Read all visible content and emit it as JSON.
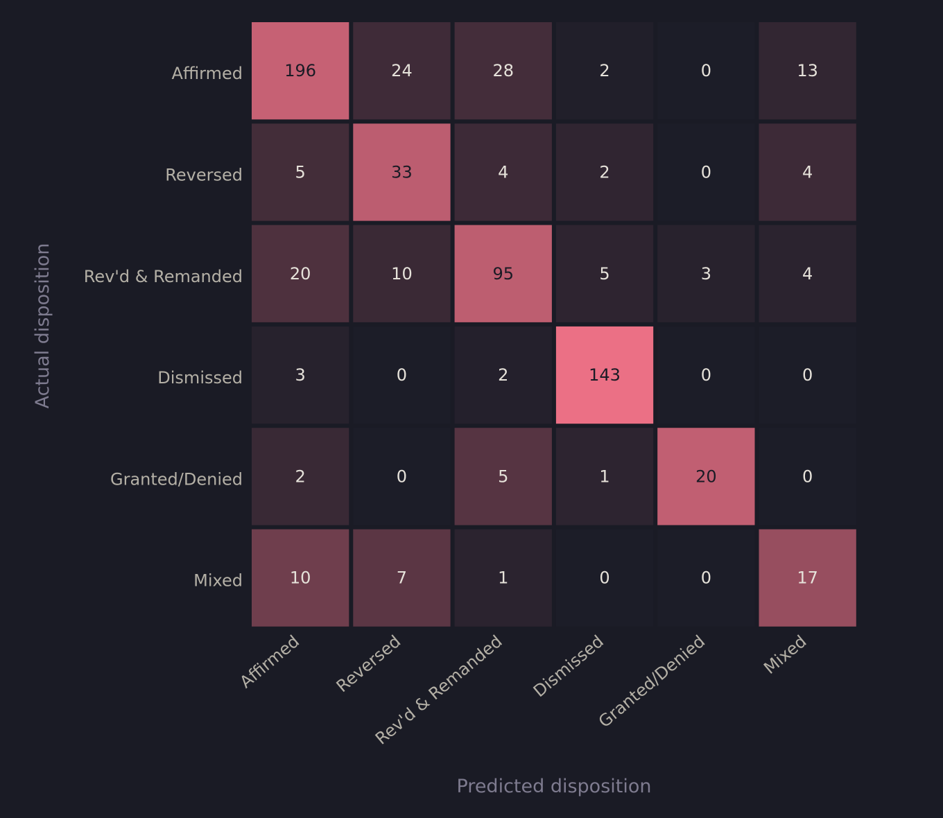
{
  "chart_data": {
    "type": "heatmap",
    "title": "",
    "xlabel": "Predicted disposition",
    "ylabel": "Actual disposition",
    "x_categories": [
      "Affirmed",
      "Reversed",
      "Rev'd & Remanded",
      "Dismissed",
      "Granted/Denied",
      "Mixed"
    ],
    "y_categories": [
      "Affirmed",
      "Reversed",
      "Rev'd & Remanded",
      "Dismissed",
      "Granted/Denied",
      "Mixed"
    ],
    "values": [
      [
        196,
        24,
        28,
        2,
        0,
        13
      ],
      [
        5,
        33,
        4,
        2,
        0,
        4
      ],
      [
        20,
        10,
        95,
        5,
        3,
        4
      ],
      [
        3,
        0,
        2,
        143,
        0,
        0
      ],
      [
        2,
        0,
        5,
        1,
        20,
        0
      ],
      [
        10,
        7,
        1,
        0,
        0,
        17
      ]
    ],
    "color_scale": {
      "low": "#1c1d28",
      "high": "#f07287",
      "normalization": "row"
    },
    "grid": false,
    "legend": "none"
  },
  "colors": {
    "background": "#1a1b25",
    "tick_text": "#b4b0a6",
    "axis_title": "#7e7b8f",
    "light_value_text": "#e6e2da",
    "dark_value_text": "#1a1b25"
  }
}
